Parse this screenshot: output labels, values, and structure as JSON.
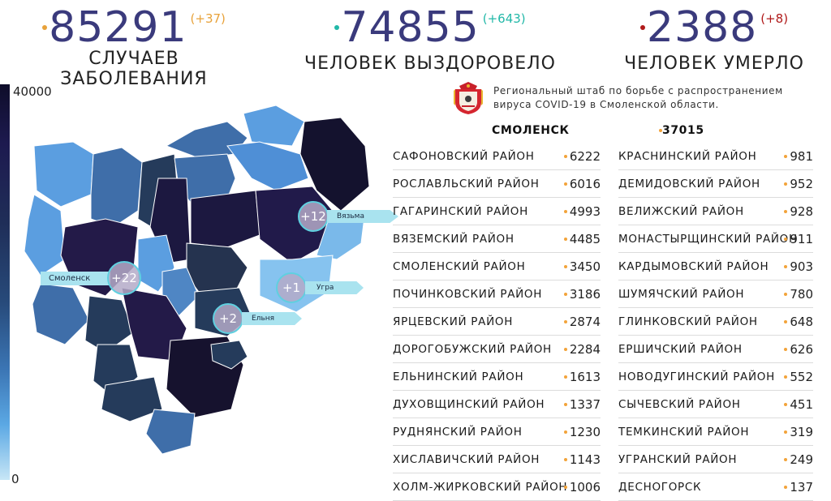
{
  "stats": [
    {
      "value": "85291",
      "delta": "(+37)",
      "caption": "Случаев заболевания",
      "color": "#e8a23a"
    },
    {
      "value": "74855",
      "delta": "(+643)",
      "caption": "Человек выздоровело",
      "color": "#22b8a8"
    },
    {
      "value": "2388",
      "delta": "(+8)",
      "caption": "Человек умерло",
      "color": "#b01a1a"
    }
  ],
  "scale": {
    "max": "40000",
    "min": "0"
  },
  "map_tags": [
    {
      "label": "Вязьма",
      "delta": "+12"
    },
    {
      "label": "Смоленск",
      "delta": "+22"
    },
    {
      "label": "Угра",
      "delta": "+1"
    },
    {
      "label": "Ельня",
      "delta": "+2"
    }
  ],
  "header_text": "Региональный штаб по борьбе с распространением вируса COVID-19 в Смоленской области.",
  "city": {
    "name": "Смоленск",
    "value": "37015"
  },
  "districts_left": [
    {
      "name": "Сафоновский район",
      "value": "6222"
    },
    {
      "name": "Рославльский район",
      "value": "6016"
    },
    {
      "name": "Гагаринский район",
      "value": "4993"
    },
    {
      "name": "Вяземский район",
      "value": "4485"
    },
    {
      "name": "Смоленский район",
      "value": "3450"
    },
    {
      "name": "Починковский район",
      "value": "3186"
    },
    {
      "name": "Ярцевский район",
      "value": "2874"
    },
    {
      "name": "Дорогобужский район",
      "value": "2284"
    },
    {
      "name": "Ельнинский район",
      "value": "1613"
    },
    {
      "name": "Духовщинский район",
      "value": "1337"
    },
    {
      "name": "Руднянский район",
      "value": "1230"
    },
    {
      "name": "Хиславичский район",
      "value": "1143"
    },
    {
      "name": "Холм-Жирковский район",
      "value": "1006"
    }
  ],
  "districts_right": [
    {
      "name": "Краснинский район",
      "value": "981"
    },
    {
      "name": "Демидовский район",
      "value": "952"
    },
    {
      "name": "Велижский район",
      "value": "928"
    },
    {
      "name": "Монастырщинский район",
      "value": "911"
    },
    {
      "name": "Кардымовский район",
      "value": "903"
    },
    {
      "name": "Шумячский район",
      "value": "780"
    },
    {
      "name": "Глинковский район",
      "value": "648"
    },
    {
      "name": "Ершичский район",
      "value": "626"
    },
    {
      "name": "Новодугинский район",
      "value": "552"
    },
    {
      "name": "Сычевский район",
      "value": "451"
    },
    {
      "name": "Темкинский район",
      "value": "319"
    },
    {
      "name": "Угранский район",
      "value": "249"
    },
    {
      "name": "Десногорск",
      "value": "137"
    }
  ]
}
